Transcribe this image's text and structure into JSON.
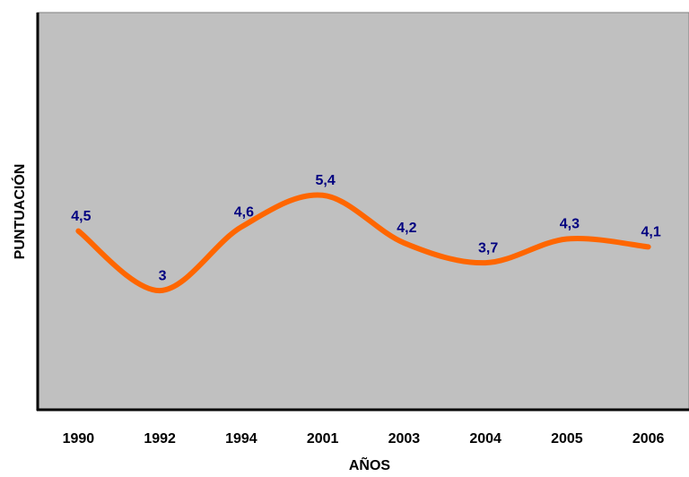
{
  "chart_data": {
    "type": "line",
    "x_label": "AÑOS",
    "y_label": "PUNTUACIÓN",
    "categories": [
      "1990",
      "1992",
      "1994",
      "2001",
      "2003",
      "2004",
      "2005",
      "2006"
    ],
    "series": [
      {
        "color": "#ff6600",
        "values": [
          4.5,
          3,
          4.6,
          5.4,
          4.2,
          3.7,
          4.3,
          4.1
        ],
        "value_labels": [
          "4,5",
          "3",
          "4,6",
          "5,4",
          "4,2",
          "3,7",
          "4,3",
          "4,1"
        ],
        "label_color": "#000080"
      }
    ],
    "ylim": [
      0,
      10
    ],
    "background": "#c0c0c0"
  }
}
